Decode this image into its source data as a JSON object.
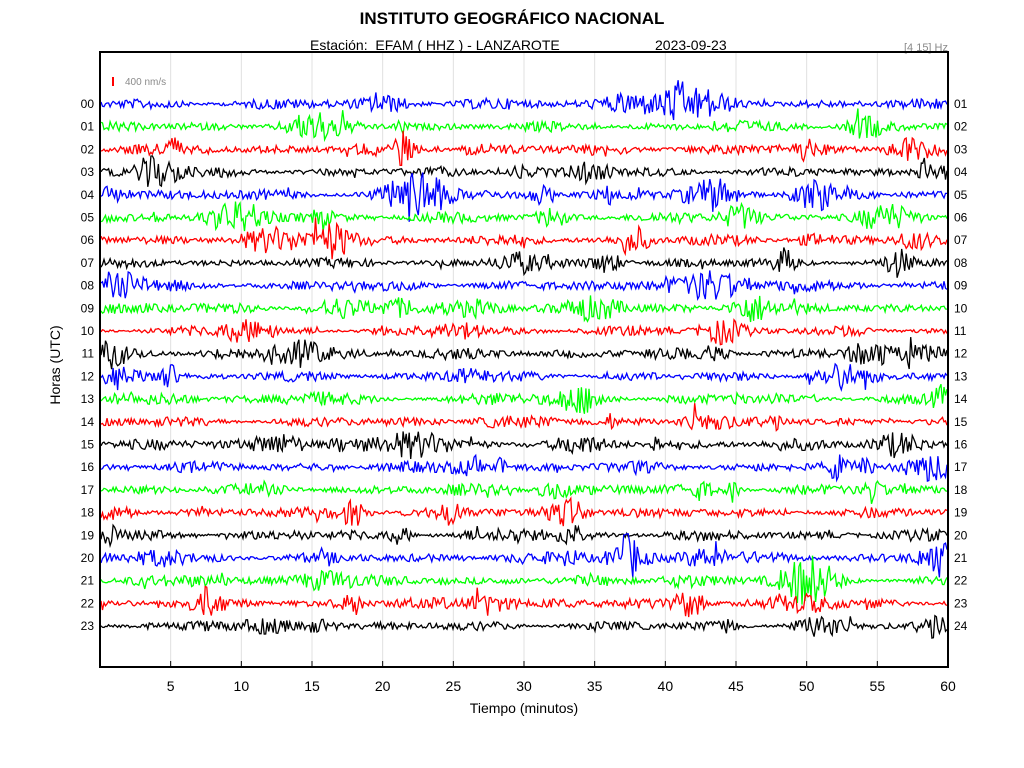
{
  "chart_data": {
    "type": "line",
    "title": "INSTITUTO GEOGRÁFICO NACIONAL",
    "subtitle": {
      "station": "Estación:  EFAM ( HHZ ) - LANZAROTE",
      "date": "2023-09-23"
    },
    "filter_label": "[4 15] Hz",
    "scale_label": "400 nm/s",
    "xlabel": "Tiempo (minutos)",
    "ylabel": "Horas (UTC)",
    "xlim": [
      0,
      60
    ],
    "x_ticks": [
      "5",
      "10",
      "15",
      "20",
      "25",
      "30",
      "35",
      "40",
      "45",
      "50",
      "55",
      "60"
    ],
    "grid": true,
    "rows": [
      {
        "left": "00",
        "right": "01"
      },
      {
        "left": "01",
        "right": "02"
      },
      {
        "left": "02",
        "right": "03"
      },
      {
        "left": "03",
        "right": "04"
      },
      {
        "left": "04",
        "right": "05"
      },
      {
        "left": "05",
        "right": "06"
      },
      {
        "left": "06",
        "right": "07"
      },
      {
        "left": "07",
        "right": "08"
      },
      {
        "left": "08",
        "right": "09"
      },
      {
        "left": "09",
        "right": "10"
      },
      {
        "left": "10",
        "right": "11"
      },
      {
        "left": "11",
        "right": "12"
      },
      {
        "left": "12",
        "right": "13"
      },
      {
        "left": "13",
        "right": "14"
      },
      {
        "left": "14",
        "right": "15"
      },
      {
        "left": "15",
        "right": "16"
      },
      {
        "left": "16",
        "right": "17"
      },
      {
        "left": "17",
        "right": "18"
      },
      {
        "left": "18",
        "right": "19"
      },
      {
        "left": "19",
        "right": "20"
      },
      {
        "left": "20",
        "right": "21"
      },
      {
        "left": "21",
        "right": "22"
      },
      {
        "left": "22",
        "right": "23"
      },
      {
        "left": "23",
        "right": "24"
      }
    ],
    "trace_colors": [
      "#0000ff",
      "#00ff00",
      "#ff0000",
      "#000000"
    ],
    "scale_color": "#ff0000"
  }
}
